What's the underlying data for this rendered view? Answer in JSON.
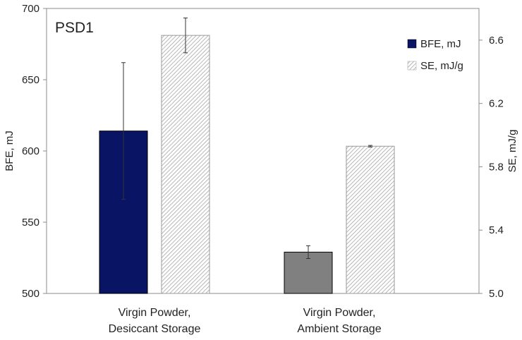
{
  "chart_data": {
    "type": "bar",
    "title": "PSD1",
    "categories": [
      [
        "Virgin Powder,",
        "Desiccant Storage"
      ],
      [
        "Virgin Powder,",
        "Ambient Storage"
      ]
    ],
    "left_axis": {
      "label": "BFE, mJ",
      "ylim": [
        500,
        700
      ],
      "ticks": [
        "500",
        "550",
        "600",
        "650",
        "700"
      ]
    },
    "right_axis": {
      "label": "SE, mJ/g",
      "ylim": [
        5.0,
        6.8
      ],
      "ticks": [
        "5.0",
        "5.4",
        "5.8",
        "6.2",
        "6.6"
      ]
    },
    "series": [
      {
        "name": "BFE, mJ",
        "axis": "left",
        "values": [
          614,
          529
        ],
        "errors": [
          48,
          4.5
        ],
        "colors": [
          "#0a1464",
          "#808080"
        ]
      },
      {
        "name": "SE, mJ/g",
        "axis": "right",
        "values": [
          6.63,
          5.93
        ],
        "errors": [
          0.11,
          0.005
        ],
        "pattern": "diagonal-hatch"
      }
    ],
    "legend_position": "top-right",
    "grid": false
  }
}
